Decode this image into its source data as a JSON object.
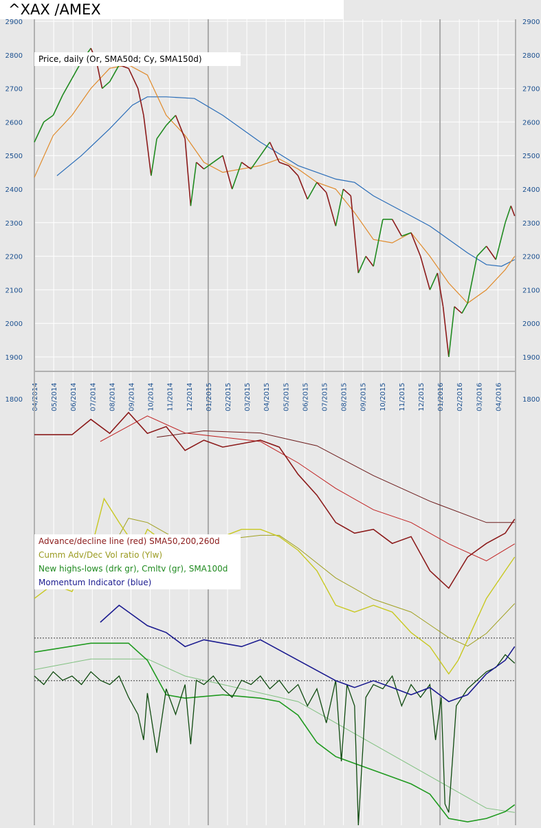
{
  "title": "^XAX /AMEX",
  "chart_data": {
    "type": "line",
    "title": "^XAX /AMEX",
    "x_unit": "months since 04/2014",
    "x_ticks": [
      "04/2014",
      "05/2014",
      "06/2014",
      "07/2014",
      "08/2014",
      "09/2014",
      "10/2014",
      "11/2014",
      "12/2014",
      "01/2015",
      "02/2015",
      "03/2015",
      "04/2015",
      "05/2015",
      "06/2015",
      "07/2015",
      "08/2015",
      "09/2015",
      "10/2015",
      "11/2015",
      "12/2015",
      "01/2016",
      "02/2016",
      "03/2016",
      "04/2016"
    ],
    "price_panel": {
      "legend": "Price, daily (Or, SMA50d; Cy, SMA150d)",
      "ylim": [
        1870,
        2900
      ],
      "y_ticks": [
        "2900",
        "2800",
        "2700",
        "2600",
        "2500",
        "2400",
        "2300",
        "2200",
        "2100",
        "2000",
        "1900"
      ],
      "bottom_tick": "1800",
      "price": [
        [
          0,
          2540
        ],
        [
          0.5,
          2600
        ],
        [
          1,
          2620
        ],
        [
          1.5,
          2680
        ],
        [
          2,
          2730
        ],
        [
          2.5,
          2780
        ],
        [
          3,
          2820
        ],
        [
          3.3,
          2780
        ],
        [
          3.6,
          2700
        ],
        [
          4,
          2720
        ],
        [
          4.5,
          2770
        ],
        [
          5,
          2760
        ],
        [
          5.5,
          2700
        ],
        [
          5.8,
          2620
        ],
        [
          6.2,
          2440
        ],
        [
          6.5,
          2550
        ],
        [
          7,
          2590
        ],
        [
          7.5,
          2620
        ],
        [
          8,
          2550
        ],
        [
          8.3,
          2350
        ],
        [
          8.6,
          2480
        ],
        [
          9,
          2460
        ],
        [
          9.5,
          2480
        ],
        [
          10,
          2500
        ],
        [
          10.5,
          2400
        ],
        [
          11,
          2480
        ],
        [
          11.5,
          2460
        ],
        [
          12,
          2500
        ],
        [
          12.5,
          2540
        ],
        [
          13,
          2480
        ],
        [
          13.5,
          2470
        ],
        [
          14,
          2440
        ],
        [
          14.5,
          2370
        ],
        [
          15,
          2420
        ],
        [
          15.5,
          2390
        ],
        [
          16,
          2290
        ],
        [
          16.4,
          2400
        ],
        [
          16.8,
          2380
        ],
        [
          17.2,
          2150
        ],
        [
          17.6,
          2200
        ],
        [
          18,
          2170
        ],
        [
          18.5,
          2310
        ],
        [
          19,
          2310
        ],
        [
          19.5,
          2260
        ],
        [
          20,
          2270
        ],
        [
          20.5,
          2200
        ],
        [
          21,
          2100
        ],
        [
          21.4,
          2150
        ],
        [
          21.7,
          2050
        ],
        [
          22,
          1900
        ],
        [
          22.3,
          2050
        ],
        [
          22.7,
          2030
        ],
        [
          23,
          2060
        ],
        [
          23.5,
          2200
        ],
        [
          24,
          2230
        ],
        [
          24.5,
          2190
        ],
        [
          25,
          2300
        ],
        [
          25.3,
          2350
        ],
        [
          25.5,
          2320
        ]
      ],
      "sma50": [
        [
          0,
          2435
        ],
        [
          1,
          2560
        ],
        [
          2,
          2620
        ],
        [
          3,
          2700
        ],
        [
          4,
          2760
        ],
        [
          5,
          2770
        ],
        [
          6,
          2740
        ],
        [
          7,
          2620
        ],
        [
          8,
          2560
        ],
        [
          9,
          2480
        ],
        [
          10,
          2450
        ],
        [
          11,
          2460
        ],
        [
          12,
          2470
        ],
        [
          13,
          2490
        ],
        [
          14,
          2460
        ],
        [
          15,
          2420
        ],
        [
          16,
          2400
        ],
        [
          17,
          2330
        ],
        [
          18,
          2250
        ],
        [
          19,
          2240
        ],
        [
          20,
          2270
        ],
        [
          21,
          2200
        ],
        [
          22,
          2120
        ],
        [
          23,
          2060
        ],
        [
          24,
          2100
        ],
        [
          25,
          2160
        ],
        [
          25.5,
          2200
        ]
      ],
      "sma150": [
        [
          1.2,
          2440
        ],
        [
          2.5,
          2500
        ],
        [
          4,
          2580
        ],
        [
          5.2,
          2650
        ],
        [
          6,
          2675
        ],
        [
          7,
          2675
        ],
        [
          8.5,
          2670
        ],
        [
          10,
          2620
        ],
        [
          12,
          2540
        ],
        [
          14,
          2470
        ],
        [
          16,
          2430
        ],
        [
          17,
          2420
        ],
        [
          18,
          2380
        ],
        [
          19,
          2350
        ],
        [
          20,
          2320
        ],
        [
          21,
          2290
        ],
        [
          22,
          2250
        ],
        [
          23,
          2210
        ],
        [
          24,
          2175
        ],
        [
          24.8,
          2170
        ],
        [
          25.5,
          2190
        ]
      ]
    },
    "indicator_panel": {
      "legend": [
        "Advance/decline line (red) SMA50,200,260d",
        "Cumm Adv/Dec Vol ratio (Ylw)",
        "New highs-lows (drk gr), Cmltv (gr), SMA100d",
        "Momentum Indicator (blue)"
      ],
      "ylim": [
        0,
        100
      ],
      "reference_levels": [
        43.9,
        33.9
      ],
      "ad_line": [
        [
          0,
          91.6
        ],
        [
          2,
          91.6
        ],
        [
          3,
          95.2
        ],
        [
          4,
          91.9
        ],
        [
          5,
          96.8
        ],
        [
          6,
          91.9
        ],
        [
          7,
          93.5
        ],
        [
          8,
          87.9
        ],
        [
          9,
          90.3
        ],
        [
          10,
          88.7
        ],
        [
          11,
          89.5
        ],
        [
          12,
          90.3
        ],
        [
          13,
          88.7
        ],
        [
          14,
          82.3
        ],
        [
          15,
          77.4
        ],
        [
          16,
          71
        ],
        [
          17,
          68.5
        ],
        [
          18,
          69.4
        ],
        [
          19,
          66.1
        ],
        [
          20,
          67.7
        ],
        [
          21,
          59.7
        ],
        [
          22,
          55.6
        ],
        [
          23,
          62.9
        ],
        [
          24,
          66.1
        ],
        [
          25,
          68.5
        ],
        [
          25.5,
          71.8
        ]
      ],
      "ad_sma": [
        [
          3.5,
          90
        ],
        [
          6,
          96
        ],
        [
          8,
          92
        ],
        [
          10,
          91
        ],
        [
          12,
          90
        ],
        [
          14,
          85
        ],
        [
          16,
          79
        ],
        [
          18,
          74
        ],
        [
          20,
          71
        ],
        [
          22,
          66
        ],
        [
          24,
          62
        ],
        [
          25.5,
          66
        ]
      ],
      "ad_sma_long": [
        [
          6.5,
          91
        ],
        [
          9,
          92.5
        ],
        [
          12,
          92
        ],
        [
          15,
          89
        ],
        [
          18,
          82
        ],
        [
          21,
          76
        ],
        [
          24,
          71
        ],
        [
          25.5,
          71
        ]
      ],
      "vol_ratio": [
        [
          0,
          53.2
        ],
        [
          1,
          56.5
        ],
        [
          2,
          54.8
        ],
        [
          3,
          64.5
        ],
        [
          3.7,
          76.6
        ],
        [
          4.5,
          71
        ],
        [
          5.5,
          64.5
        ],
        [
          6,
          69.4
        ],
        [
          7,
          66.1
        ],
        [
          8,
          67.7
        ],
        [
          9,
          64.5
        ],
        [
          10,
          67.7
        ],
        [
          11,
          69.4
        ],
        [
          12,
          69.4
        ],
        [
          13,
          67.7
        ],
        [
          14,
          64.5
        ],
        [
          15,
          59.7
        ],
        [
          16,
          51.6
        ],
        [
          17,
          50
        ],
        [
          18,
          51.6
        ],
        [
          19,
          50
        ],
        [
          20,
          45.2
        ],
        [
          21,
          41.9
        ],
        [
          22,
          35.5
        ],
        [
          22.5,
          38.7
        ],
        [
          23,
          43.5
        ],
        [
          24,
          53.2
        ],
        [
          25,
          59.7
        ],
        [
          25.5,
          62.9
        ]
      ],
      "vol_sma": [
        [
          4,
          64
        ],
        [
          5,
          72
        ],
        [
          6,
          71
        ],
        [
          8,
          66
        ],
        [
          10,
          67
        ],
        [
          12,
          68
        ],
        [
          13,
          68
        ],
        [
          14,
          65
        ],
        [
          16,
          58
        ],
        [
          18,
          53
        ],
        [
          20,
          50
        ],
        [
          22,
          44
        ],
        [
          23,
          42
        ],
        [
          24,
          45
        ],
        [
          25.5,
          52
        ]
      ],
      "cumulative_hl": [
        [
          0,
          40.6
        ],
        [
          3,
          42.7
        ],
        [
          5,
          42.7
        ],
        [
          6,
          38.7
        ],
        [
          7,
          30.6
        ],
        [
          8,
          29.8
        ],
        [
          10,
          30.6
        ],
        [
          12,
          29.8
        ],
        [
          13,
          29
        ],
        [
          14,
          25.8
        ],
        [
          15,
          19.4
        ],
        [
          16,
          16.1
        ],
        [
          17,
          14.5
        ],
        [
          18,
          12.9
        ],
        [
          19,
          11.3
        ],
        [
          20,
          9.7
        ],
        [
          21,
          7.3
        ],
        [
          22,
          1.6
        ],
        [
          23,
          0.8
        ],
        [
          24,
          1.6
        ],
        [
          25,
          3.2
        ],
        [
          25.5,
          4.8
        ]
      ],
      "cumulative_sma": [
        [
          0,
          36.5
        ],
        [
          3,
          39
        ],
        [
          6,
          39
        ],
        [
          8,
          35
        ],
        [
          10,
          33
        ],
        [
          12,
          31
        ],
        [
          14,
          29
        ],
        [
          16,
          24
        ],
        [
          18,
          19
        ],
        [
          20,
          14
        ],
        [
          22,
          9
        ],
        [
          24,
          4
        ],
        [
          25.5,
          3
        ]
      ],
      "momentum": [
        [
          3.5,
          47.6
        ],
        [
          4.5,
          51.6
        ],
        [
          5,
          50
        ],
        [
          6,
          46.8
        ],
        [
          7,
          45.2
        ],
        [
          8,
          41.9
        ],
        [
          9,
          43.5
        ],
        [
          10,
          42.7
        ],
        [
          11,
          41.9
        ],
        [
          12,
          43.5
        ],
        [
          13,
          41.1
        ],
        [
          14,
          38.7
        ],
        [
          15,
          36.3
        ],
        [
          16,
          33.9
        ],
        [
          17,
          32.3
        ],
        [
          18,
          33.9
        ],
        [
          19,
          32.3
        ],
        [
          20,
          30.6
        ],
        [
          21,
          32.3
        ],
        [
          22,
          29
        ],
        [
          23,
          30.6
        ],
        [
          24,
          35.5
        ],
        [
          25,
          38.7
        ],
        [
          25.5,
          41.9
        ]
      ],
      "new_highs_lows": [
        [
          0,
          35
        ],
        [
          0.5,
          33
        ],
        [
          1,
          36
        ],
        [
          1.5,
          34
        ],
        [
          2,
          35
        ],
        [
          2.5,
          33
        ],
        [
          3,
          36
        ],
        [
          3.5,
          34
        ],
        [
          4,
          33
        ],
        [
          4.5,
          35
        ],
        [
          5,
          30
        ],
        [
          5.5,
          26
        ],
        [
          5.8,
          20
        ],
        [
          6,
          31
        ],
        [
          6.5,
          17
        ],
        [
          7,
          32
        ],
        [
          7.5,
          26
        ],
        [
          8,
          33
        ],
        [
          8.3,
          19
        ],
        [
          8.6,
          34
        ],
        [
          9,
          33
        ],
        [
          9.5,
          35
        ],
        [
          10,
          32
        ],
        [
          10.5,
          30
        ],
        [
          11,
          34
        ],
        [
          11.5,
          33
        ],
        [
          12,
          35
        ],
        [
          12.5,
          32
        ],
        [
          13,
          34
        ],
        [
          13.5,
          31
        ],
        [
          14,
          33
        ],
        [
          14.5,
          28
        ],
        [
          15,
          32
        ],
        [
          15.5,
          24
        ],
        [
          16,
          34
        ],
        [
          16.3,
          15
        ],
        [
          16.6,
          33
        ],
        [
          17,
          28
        ],
        [
          17.2,
          0
        ],
        [
          17.6,
          30
        ],
        [
          18,
          33
        ],
        [
          18.5,
          32
        ],
        [
          19,
          35
        ],
        [
          19.5,
          28
        ],
        [
          20,
          33
        ],
        [
          20.5,
          30
        ],
        [
          21,
          33
        ],
        [
          21.3,
          20
        ],
        [
          21.6,
          30
        ],
        [
          21.8,
          5
        ],
        [
          22,
          3
        ],
        [
          22.4,
          28
        ],
        [
          23,
          32
        ],
        [
          23.5,
          34
        ],
        [
          24,
          36
        ],
        [
          24.5,
          37
        ],
        [
          25,
          40
        ],
        [
          25.5,
          38
        ]
      ]
    }
  }
}
